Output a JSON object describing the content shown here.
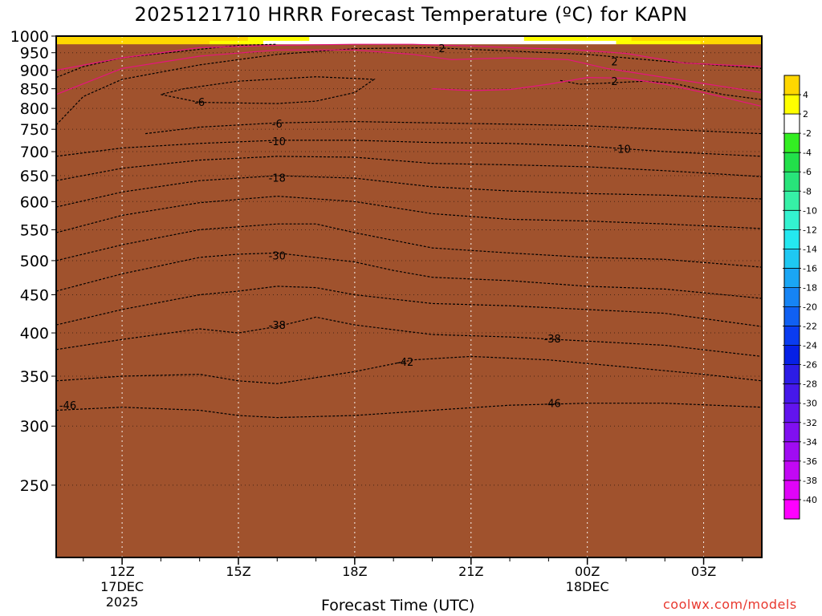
{
  "title": "2025121710 HRRR Forecast Temperature (ºC) for KAPN",
  "credit": "coolwx.com/models",
  "chart_data": {
    "type": "heatmap",
    "title": "2025121710 HRRR Forecast Temperature (ºC) for KAPN",
    "xlabel": "Forecast Time (UTC)",
    "ylabel": "",
    "y_axis": {
      "unit": "hPa",
      "scale": "log-pressure",
      "inverted": true,
      "range": [
        1000,
        200
      ],
      "ticks": [
        250,
        300,
        350,
        400,
        450,
        500,
        550,
        600,
        650,
        700,
        750,
        800,
        850,
        900,
        950,
        1000
      ]
    },
    "x_axis": {
      "unit": "hours since 2025-12-17 10Z",
      "range": [
        0.3,
        18.5
      ],
      "ticks": [
        {
          "x": 2,
          "label": "12Z",
          "sub": [
            "17DEC",
            "2025"
          ]
        },
        {
          "x": 5,
          "label": "15Z",
          "sub": []
        },
        {
          "x": 8,
          "label": "18Z",
          "sub": []
        },
        {
          "x": 11,
          "label": "21Z",
          "sub": []
        },
        {
          "x": 14,
          "label": "00Z",
          "sub": [
            "18DEC"
          ]
        },
        {
          "x": 17,
          "label": "03Z",
          "sub": []
        }
      ]
    },
    "grid": true,
    "colorbar": {
      "placement": "right",
      "tick_labels": [
        "4",
        "2",
        "-2",
        "-4",
        "-6",
        "-8",
        "-10",
        "-12",
        "-14",
        "-16",
        "-18",
        "-20",
        "-22",
        "-24",
        "-26",
        "-28",
        "-30",
        "-32",
        "-34",
        "-36",
        "-38",
        "-40"
      ],
      "bins": [
        {
          "lo": 4,
          "hi": 6,
          "color": "#ffd700"
        },
        {
          "lo": 2,
          "hi": 4,
          "color": "#ffff00"
        },
        {
          "lo": -2,
          "hi": 2,
          "color": "#ffffff"
        },
        {
          "lo": -4,
          "hi": -2,
          "color": "#33ee22"
        },
        {
          "lo": -6,
          "hi": -4,
          "color": "#22e04a"
        },
        {
          "lo": -8,
          "hi": -6,
          "color": "#28e47a"
        },
        {
          "lo": -10,
          "hi": -8,
          "color": "#36f0a6"
        },
        {
          "lo": -12,
          "hi": -10,
          "color": "#33f2d0"
        },
        {
          "lo": -14,
          "hi": -12,
          "color": "#24e8f0"
        },
        {
          "lo": -16,
          "hi": -14,
          "color": "#1ec8f2"
        },
        {
          "lo": -18,
          "hi": -16,
          "color": "#1aa6f4"
        },
        {
          "lo": -20,
          "hi": -18,
          "color": "#1684f4"
        },
        {
          "lo": -22,
          "hi": -20,
          "color": "#1060f2"
        },
        {
          "lo": -24,
          "hi": -22,
          "color": "#0a3cf0"
        },
        {
          "lo": -26,
          "hi": -24,
          "color": "#0620e6"
        },
        {
          "lo": -28,
          "hi": -26,
          "color": "#2c1ce6"
        },
        {
          "lo": -30,
          "hi": -28,
          "color": "#4618ea"
        },
        {
          "lo": -32,
          "hi": -30,
          "color": "#6214ee"
        },
        {
          "lo": -34,
          "hi": -32,
          "color": "#8010f0"
        },
        {
          "lo": -36,
          "hi": -34,
          "color": "#a00cf2"
        },
        {
          "lo": -38,
          "hi": -36,
          "color": "#c208f4"
        },
        {
          "lo": -40,
          "hi": -38,
          "color": "#e004f8"
        },
        {
          "lo": -60,
          "hi": -40,
          "color": "#ff00ff"
        }
      ]
    },
    "ground": {
      "pressure": 975,
      "color": "#a0522d"
    },
    "isotherms": [
      {
        "temp": -46,
        "x": [
          0.3,
          2,
          4,
          5,
          6,
          8,
          10,
          12,
          14,
          16,
          18.5
        ],
        "p": [
          315,
          318,
          315,
          310,
          308,
          310,
          315,
          320,
          322,
          322,
          318
        ]
      },
      {
        "temp": -42,
        "x": [
          0.3,
          2,
          4,
          5,
          6,
          8,
          9.5,
          11,
          13,
          15,
          17,
          18.5
        ],
        "p": [
          345,
          350,
          352,
          345,
          342,
          355,
          368,
          372,
          368,
          360,
          352,
          345
        ]
      },
      {
        "temp": -38,
        "x": [
          0.3,
          2,
          4,
          5,
          6,
          7,
          8,
          10,
          12,
          14,
          16,
          18.5
        ],
        "p": [
          380,
          392,
          405,
          400,
          408,
          420,
          410,
          398,
          395,
          390,
          385,
          372
        ]
      },
      {
        "temp": -34,
        "x": [
          0.3,
          2,
          4,
          5,
          6,
          7,
          8,
          10,
          12,
          14,
          16,
          18.5
        ],
        "p": [
          410,
          430,
          450,
          455,
          462,
          460,
          450,
          438,
          435,
          430,
          425,
          408
        ]
      },
      {
        "temp": -30,
        "x": [
          0.3,
          2,
          4,
          5,
          6,
          8,
          9,
          10,
          12,
          14,
          16,
          18.5
        ],
        "p": [
          455,
          480,
          505,
          510,
          512,
          498,
          485,
          475,
          470,
          462,
          458,
          445
        ]
      },
      {
        "temp": -26,
        "x": [
          0.3,
          2,
          4,
          6,
          7,
          8,
          10,
          12,
          14,
          16,
          18.5
        ],
        "p": [
          500,
          525,
          550,
          560,
          560,
          545,
          520,
          512,
          505,
          502,
          490
        ]
      },
      {
        "temp": -22,
        "x": [
          0.3,
          2,
          4,
          6,
          8,
          10,
          12,
          14,
          16,
          18.5
        ],
        "p": [
          545,
          575,
          598,
          610,
          600,
          578,
          568,
          565,
          560,
          552
        ]
      },
      {
        "temp": -18,
        "x": [
          0.3,
          2,
          4,
          6,
          8,
          10,
          12,
          14,
          16,
          18.5
        ],
        "p": [
          590,
          618,
          640,
          650,
          645,
          628,
          620,
          615,
          612,
          605
        ]
      },
      {
        "temp": -14,
        "x": [
          0.3,
          2,
          4,
          6,
          8,
          10,
          12,
          14,
          16,
          18.5
        ],
        "p": [
          640,
          665,
          682,
          690,
          688,
          675,
          672,
          668,
          660,
          648
        ]
      },
      {
        "temp": -10,
        "x": [
          0.3,
          2,
          4,
          6,
          8,
          10,
          12,
          14,
          16,
          18.5
        ],
        "p": [
          690,
          708,
          718,
          725,
          725,
          720,
          718,
          712,
          700,
          690
        ]
      },
      {
        "temp": -6,
        "x": [
          2.6,
          4,
          6,
          8,
          10,
          12,
          14,
          16,
          18.5
        ],
        "p": [
          740,
          755,
          765,
          768,
          765,
          762,
          758,
          750,
          740
        ]
      },
      {
        "temp": -6,
        "x": [
          3.0,
          4,
          6,
          7,
          8,
          8.5,
          7,
          5,
          3.6,
          3.0
        ],
        "p": [
          835,
          815,
          812,
          818,
          840,
          875,
          882,
          870,
          850,
          835
        ]
      },
      {
        "temp": -2,
        "x": [
          0.3,
          1,
          2,
          4,
          6,
          8,
          10,
          12,
          14,
          16,
          18.5
        ],
        "p": [
          760,
          830,
          875,
          915,
          945,
          962,
          965,
          955,
          945,
          925,
          905
        ]
      },
      {
        "temp": 2,
        "x": [
          13.3,
          13.8,
          14.5,
          15.5,
          16.2,
          17.5,
          18.5
        ],
        "p": [
          872,
          862,
          865,
          870,
          865,
          835,
          822
        ]
      },
      {
        "temp": 2,
        "x": [
          0.3,
          1,
          2,
          4,
          5,
          6
        ],
        "p": [
          880,
          910,
          935,
          960,
          972,
          975
        ]
      }
    ],
    "isotherm_labels": [
      {
        "text": "-46",
        "x": 0.6,
        "p": 320
      },
      {
        "text": "-46",
        "x": 13.1,
        "p": 322
      },
      {
        "text": "-42",
        "x": 9.3,
        "p": 366
      },
      {
        "text": "-38",
        "x": 6.0,
        "p": 410
      },
      {
        "text": "-38",
        "x": 13.1,
        "p": 393
      },
      {
        "text": "-30",
        "x": 6.0,
        "p": 508
      },
      {
        "text": "-18",
        "x": 6.0,
        "p": 646
      },
      {
        "text": "-10",
        "x": 6.0,
        "p": 723
      },
      {
        "text": "-10",
        "x": 14.9,
        "p": 706
      },
      {
        "text": "-6",
        "x": 6.0,
        "p": 763
      },
      {
        "text": "-6",
        "x": 4.0,
        "p": 816
      },
      {
        "text": "-2",
        "x": 10.2,
        "p": 964
      },
      {
        "text": "2",
        "x": 14.7,
        "p": 870
      },
      {
        "text": "2",
        "x": 14.7,
        "p": 925
      }
    ],
    "zero_lines": [
      {
        "x": [
          0.3,
          2,
          4,
          6,
          8,
          9.5,
          10.5,
          12,
          13.5,
          14.5,
          16,
          18.5
        ],
        "p": [
          835,
          905,
          940,
          958,
          958,
          945,
          930,
          935,
          930,
          905,
          880,
          840
        ]
      },
      {
        "x": [
          10.0,
          11,
          12,
          13,
          14,
          15,
          16,
          17,
          18.5
        ],
        "p": [
          850,
          845,
          848,
          862,
          880,
          878,
          862,
          840,
          805
        ]
      },
      {
        "x": [
          0.3,
          2,
          4,
          6,
          8,
          9.5,
          11,
          12,
          13.5,
          15,
          16.5,
          18.5
        ],
        "p": [
          900,
          935,
          965,
          972,
          975,
          975,
          970,
          965,
          960,
          948,
          920,
          910
        ]
      }
    ],
    "zero_line_color": "#e5157f"
  }
}
